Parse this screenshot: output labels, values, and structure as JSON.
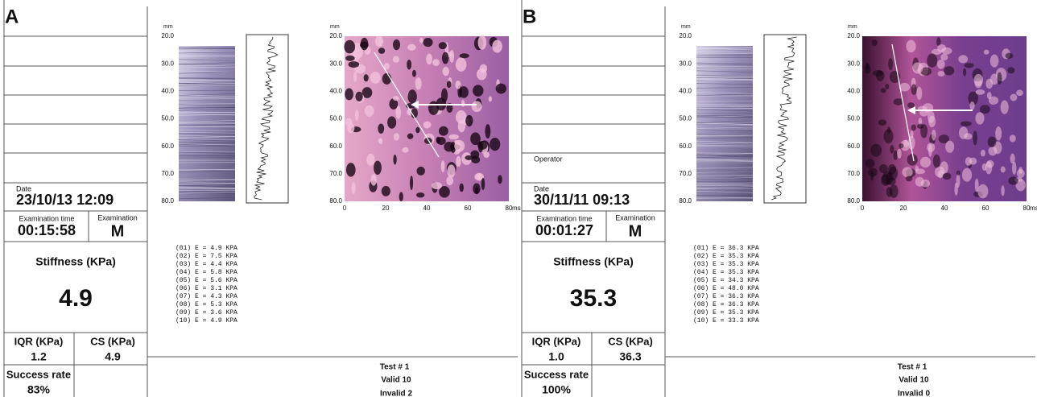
{
  "panels": [
    {
      "label": "A",
      "operator": null,
      "date_label": "Date",
      "date": "23/10/13 12:09",
      "exam_time_label": "Examination time",
      "exam_time": "00:15:58",
      "exam_label": "Examination",
      "exam": "M",
      "stiffness_label": "Stiffness (KPa)",
      "stiffness": "4.9",
      "iqr_label": "IQR (KPa)",
      "iqr": "1.2",
      "cs_label": "CS (KPa)",
      "cs": "4.9",
      "success_label": "Success rate",
      "success": "83%",
      "mmode": {
        "unit": "mm",
        "yticks": [
          "20.0",
          "30.0",
          "40.0",
          "50.0",
          "60.0",
          "70.0",
          "80.0"
        ]
      },
      "elasto": {
        "unit": "mm",
        "yticks": [
          "20.0",
          "30.0",
          "40.0",
          "50.0",
          "60.0",
          "70.0",
          "80.0"
        ],
        "xticks": [
          "0",
          "20",
          "40",
          "60",
          "80"
        ],
        "x_unit": "ms"
      },
      "measurements": [
        "(01) E = 4.9 KPA",
        "(02) E = 7.5 KPA",
        "(03) E = 4.4 KPA",
        "(04) E = 5.8 KPA",
        "(05) E = 5.6 KPA",
        "(06) E = 3.1 KPA",
        "(07) E = 4.3 KPA",
        "(08) E = 5.3 KPA",
        "(09) E = 3.6 KPA",
        "(10) E = 4.9 KPA"
      ],
      "test": "Test # 1",
      "valid": "Valid 10",
      "invalid": "Invalid 2"
    },
    {
      "label": "B",
      "operator": "Operator",
      "date_label": "Date",
      "date": "30/11/11 09:13",
      "exam_time_label": "Examination time",
      "exam_time": "00:01:27",
      "exam_label": "Examination",
      "exam": "M",
      "stiffness_label": "Stiffness (KPa)",
      "stiffness": "35.3",
      "iqr_label": "IQR (KPa)",
      "iqr": "1.0",
      "cs_label": "CS (KPa)",
      "cs": "36.3",
      "success_label": "Success rate",
      "success": "100%",
      "mmode": {
        "unit": "mm",
        "yticks": [
          "20.0",
          "30.0",
          "40.0",
          "50.0",
          "60.0",
          "70.0",
          "80.0"
        ]
      },
      "elasto": {
        "unit": "mm",
        "yticks": [
          "20.0",
          "30.0",
          "40.0",
          "50.0",
          "60.0",
          "70.0",
          "80.0"
        ],
        "xticks": [
          "0",
          "20",
          "40",
          "60",
          "80"
        ],
        "x_unit": "ms"
      },
      "measurements": [
        "(01) E = 36.3 KPA",
        "(02) E = 35.3 KPA",
        "(03) E = 35.3 KPA",
        "(04) E = 35.3 KPA",
        "(05) E = 34.3 KPA",
        "(06) E = 48.0 KPA",
        "(07) E = 36.3 KPA",
        "(08) E = 36.3 KPA",
        "(09) E = 35.3 KPA",
        "(10) E = 33.3 KPA"
      ],
      "test": "Test # 1",
      "valid": "Valid 10",
      "invalid": "Invalid 0"
    }
  ]
}
